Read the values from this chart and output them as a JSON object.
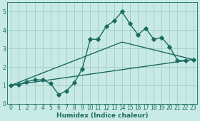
{
  "title": "",
  "xlabel": "Humidex (Indice chaleur)",
  "xlim": [
    -0.5,
    23.5
  ],
  "ylim": [
    0,
    5.5
  ],
  "xticks": [
    0,
    1,
    2,
    3,
    4,
    5,
    6,
    7,
    8,
    9,
    10,
    11,
    12,
    13,
    14,
    15,
    16,
    17,
    18,
    19,
    20,
    21,
    22,
    23
  ],
  "yticks": [
    0,
    1,
    2,
    3,
    4,
    5
  ],
  "bg_color": "#c8eae5",
  "grid_color": "#a0ccc8",
  "line_color": "#1a6b60",
  "line1_x": [
    0,
    1,
    2,
    3,
    4,
    5,
    6,
    7,
    8,
    9,
    10,
    11,
    12,
    13,
    14,
    15,
    16,
    17,
    18,
    19,
    20,
    21,
    22,
    23
  ],
  "line1_y": [
    1.0,
    1.05,
    1.2,
    1.3,
    1.3,
    1.1,
    0.5,
    0.7,
    1.15,
    1.9,
    3.5,
    3.5,
    4.2,
    4.5,
    5.0,
    4.35,
    3.75,
    4.1,
    3.5,
    3.6,
    3.1,
    2.35,
    2.35,
    2.4
  ],
  "line2_x": [
    0,
    23
  ],
  "line2_y": [
    1.0,
    2.4
  ],
  "line3_x": [
    0,
    14,
    23
  ],
  "line3_y": [
    1.0,
    3.35,
    2.4
  ],
  "markersize": 2.8,
  "linewidth": 1.0
}
